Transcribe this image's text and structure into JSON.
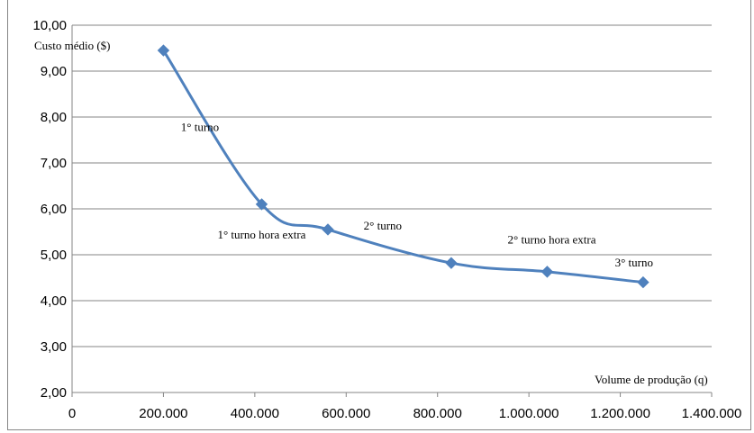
{
  "chart_data": {
    "type": "line",
    "title": "",
    "ylabel": "Custo médio ($)",
    "xlabel": "Volume de produção (q)",
    "xlim": [
      0,
      1400000
    ],
    "ylim": [
      2,
      10
    ],
    "x_ticks": [
      "0",
      "200.000",
      "400.000",
      "600.000",
      "800.000",
      "1.000.000",
      "1.200.000",
      "1.400.000"
    ],
    "y_ticks": [
      "2,00",
      "3,00",
      "4,00",
      "5,00",
      "6,00",
      "7,00",
      "8,00",
      "9,00",
      "10,00"
    ],
    "grid": true,
    "series": [
      {
        "name": "",
        "color": "#4F81BD",
        "marker": "diamond",
        "x": [
          200000,
          415000,
          560000,
          830000,
          1040000,
          1250000
        ],
        "y": [
          9.45,
          6.1,
          5.55,
          4.82,
          4.63,
          4.4
        ]
      }
    ],
    "annotations": [
      {
        "text": "1° turno",
        "x": 280000,
        "y": 7.7
      },
      {
        "text": "1° turno hora extra",
        "x": 415000,
        "y": 5.35
      },
      {
        "text": "2° turno",
        "x": 680000,
        "y": 5.55
      },
      {
        "text": "2° turno hora extra",
        "x": 1050000,
        "y": 5.25
      },
      {
        "text": "3° turno",
        "x": 1230000,
        "y": 4.75
      }
    ]
  }
}
